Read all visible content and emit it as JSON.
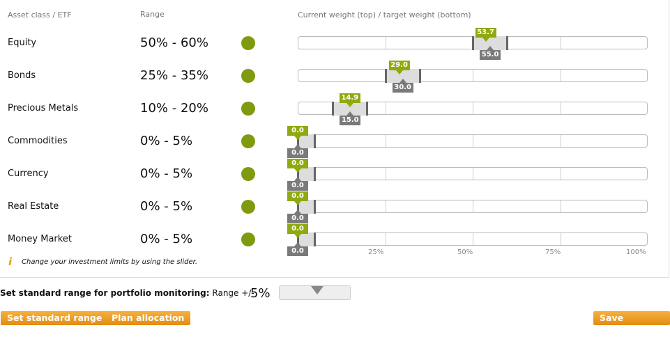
{
  "headers": {
    "asset": "Asset class / ETF",
    "range": "Range",
    "weight": "Current weight (top) / target weight (bottom)"
  },
  "status_color": "#7f9a0f",
  "rows": [
    {
      "name": "Equity",
      "range": "50% - 60%",
      "min": 50,
      "max": 60,
      "current": "53.7",
      "target": "55.0",
      "cur_v": 53.7,
      "tgt_v": 55
    },
    {
      "name": "Bonds",
      "range": "25% - 35%",
      "min": 25,
      "max": 35,
      "current": "29.0",
      "target": "30.0",
      "cur_v": 29,
      "tgt_v": 30
    },
    {
      "name": "Precious Metals",
      "range": "10% - 20%",
      "min": 10,
      "max": 20,
      "current": "14.9",
      "target": "15.0",
      "cur_v": 14.9,
      "tgt_v": 15
    },
    {
      "name": "Commodities",
      "range": "0% - 5%",
      "min": 0,
      "max": 5,
      "current": "0.0",
      "target": "0.0",
      "cur_v": 0,
      "tgt_v": 0
    },
    {
      "name": "Currency",
      "range": "0% - 5%",
      "min": 0,
      "max": 5,
      "current": "0.0",
      "target": "0.0",
      "cur_v": 0,
      "tgt_v": 0
    },
    {
      "name": "Real Estate",
      "range": "0% - 5%",
      "min": 0,
      "max": 5,
      "current": "0.0",
      "target": "0.0",
      "cur_v": 0,
      "tgt_v": 0
    },
    {
      "name": "Money Market",
      "range": "0% - 5%",
      "min": 0,
      "max": 5,
      "current": "0.0",
      "target": "0.0",
      "cur_v": 0,
      "tgt_v": 0
    }
  ],
  "axis": [
    "25%",
    "50%",
    "75%",
    "100%"
  ],
  "info": "Change your investment limits by using the slider.",
  "standard": {
    "label": "Set standard range for portfolio monitoring:",
    "range_label": "Range +/-",
    "value": "5%"
  },
  "buttons": {
    "set_standard": "Set standard range",
    "plan": "Plan allocation",
    "save": "Save Changes"
  }
}
